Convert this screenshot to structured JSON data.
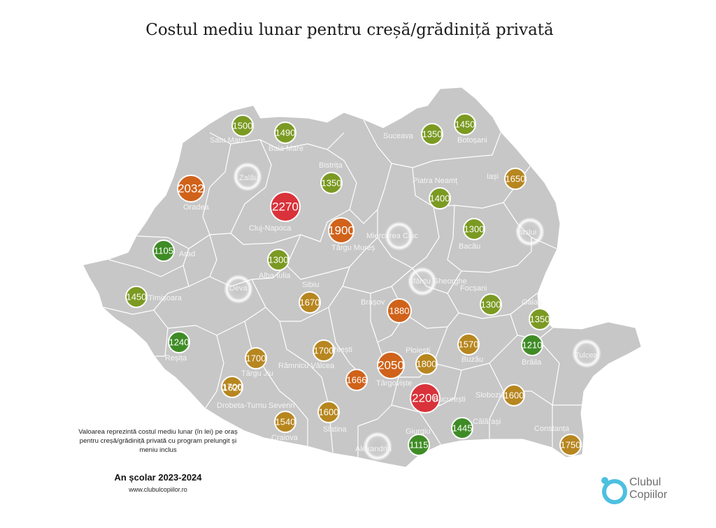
{
  "title": "Costul mediu lunar pentru creșă/grădiniță privată",
  "note": {
    "description": "Valoarea reprezintă costul mediu lunar (în lei) pe oraș pentru creșă/grădiniță privată cu program prelungit și meniu inclus",
    "school_year": "An școlar 2023-2024",
    "website": "www.clubulcopiilor.ro"
  },
  "logo": {
    "line1": "Clubul",
    "line2": "Copiilor",
    "icon": "clubul-copiilor-logo-icon"
  },
  "colors": {
    "map_fill": "#c7c7c7",
    "border": "#ffffff",
    "red": "#d9323a",
    "orange": "#d0621a",
    "gold": "#b7861f",
    "olive": "#7b9a22",
    "green": "#3f8c26"
  },
  "cities": [
    {
      "name": "Satu Mare",
      "value": "1500",
      "color": "olive"
    },
    {
      "name": "Baia Mare",
      "value": "1490",
      "color": "olive"
    },
    {
      "name": "Suceava",
      "value": "1350",
      "color": "olive"
    },
    {
      "name": "Botoșani",
      "value": "1450",
      "color": "olive"
    },
    {
      "name": "Zalău",
      "value": "",
      "color": "none"
    },
    {
      "name": "Bistrița",
      "value": "1350",
      "color": "olive"
    },
    {
      "name": "Iași",
      "value": "1650",
      "color": "gold"
    },
    {
      "name": "Oradea",
      "value": "2032",
      "color": "orange"
    },
    {
      "name": "Piatra Neamț",
      "value": "1400",
      "color": "olive"
    },
    {
      "name": "Cluj-Napoca",
      "value": "2270",
      "color": "red"
    },
    {
      "name": "Târgu Mureș",
      "value": "1900",
      "color": "orange"
    },
    {
      "name": "Miercurea Ciuc",
      "value": "",
      "color": "none"
    },
    {
      "name": "Bacău",
      "value": "1300",
      "color": "olive"
    },
    {
      "name": "Vaslui",
      "value": "",
      "color": "none"
    },
    {
      "name": "Arad",
      "value": "1105",
      "color": "green"
    },
    {
      "name": "Alba Iulia",
      "value": "1300",
      "color": "olive"
    },
    {
      "name": "Deva",
      "value": "",
      "color": "none"
    },
    {
      "name": "Sfântu Gheorghe",
      "value": "",
      "color": "none"
    },
    {
      "name": "Timișoara",
      "value": "1450",
      "color": "olive"
    },
    {
      "name": "Sibiu",
      "value": "1670",
      "color": "gold"
    },
    {
      "name": "Focșani",
      "value": "1300",
      "color": "olive"
    },
    {
      "name": "Galați",
      "value": "1350",
      "color": "olive"
    },
    {
      "name": "Brașov",
      "value": "1880",
      "color": "orange"
    },
    {
      "name": "Reșița",
      "value": "1240",
      "color": "green"
    },
    {
      "name": "Pitești",
      "value": "1700",
      "color": "gold"
    },
    {
      "name": "Ploiești",
      "value": "1800",
      "color": "gold"
    },
    {
      "name": "Buzău",
      "value": "1570",
      "color": "gold"
    },
    {
      "name": "Brăila",
      "value": "1210",
      "color": "green"
    },
    {
      "name": "Tulcea",
      "value": "",
      "color": "none"
    },
    {
      "name": "Râmnicu Vâlcea",
      "value": "1700",
      "color": "gold"
    },
    {
      "name": "Târgu Jiu",
      "value": "1700",
      "color": "gold"
    },
    {
      "name": "Târgoviște",
      "value": "2050",
      "color": "orange"
    },
    {
      "name": "Drobeta-Turnu Severin",
      "value": "1620",
      "color": "gold"
    },
    {
      "name": "București",
      "value": "2200",
      "color": "red"
    },
    {
      "name": "Slobozia",
      "value": "1600",
      "color": "gold"
    },
    {
      "name": "Craiova",
      "value": "1540",
      "color": "gold"
    },
    {
      "name": "Slatina",
      "value": "1600",
      "color": "gold"
    },
    {
      "name": "Giurgiu",
      "value": "1115",
      "color": "green"
    },
    {
      "name": "Călărași",
      "value": "1445",
      "color": "green"
    },
    {
      "name": "Alexandria",
      "value": "",
      "color": "none"
    },
    {
      "name": "Constanța",
      "value": "1750",
      "color": "gold"
    },
    {
      "name": "",
      "value": "1666",
      "color": "orange"
    }
  ]
}
